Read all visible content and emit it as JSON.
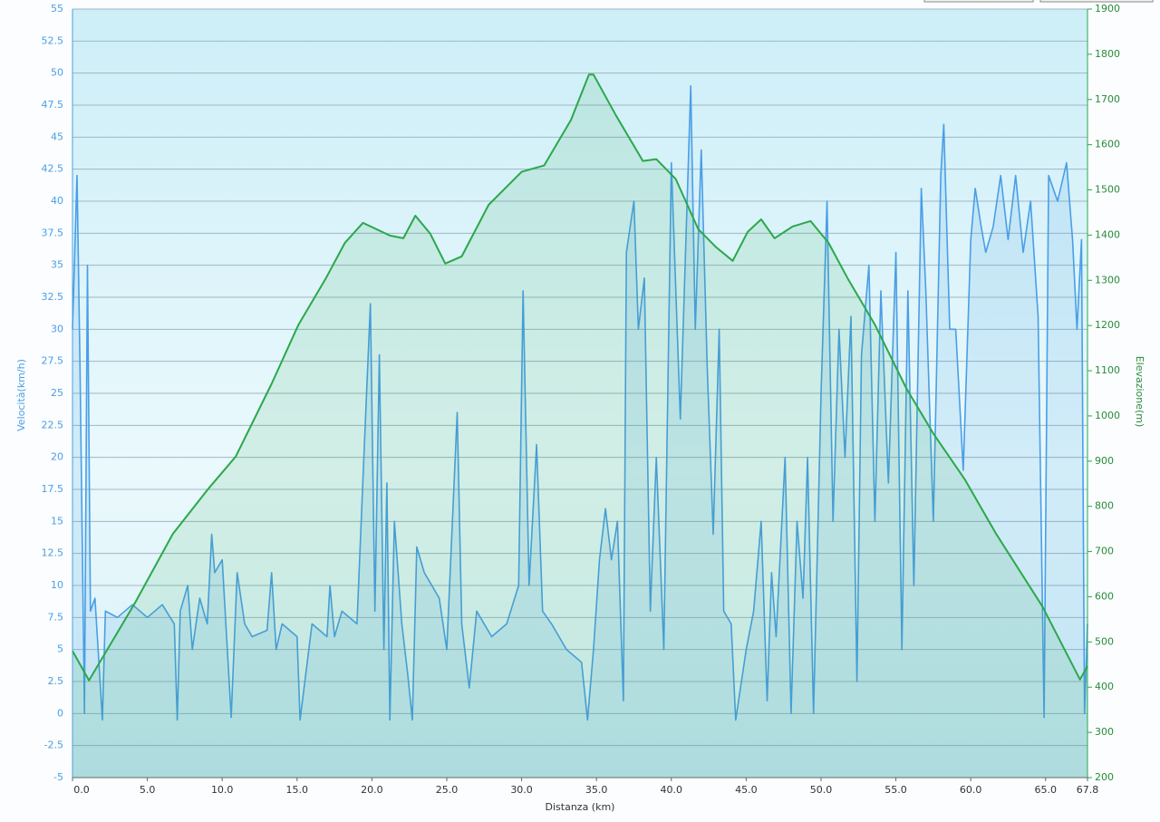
{
  "chart_data": {
    "type": "line",
    "xlabel": "Distanza  (km)",
    "ylabel": "Velocità(km/h)",
    "y2label": "Elevazione(m)",
    "xlim": [
      0,
      67.8
    ],
    "xticks": [
      {
        "value": 0,
        "label": "0.0"
      },
      {
        "value": 5,
        "label": "5.0"
      },
      {
        "value": 10,
        "label": "10.0"
      },
      {
        "value": 15,
        "label": "15.0"
      },
      {
        "value": 20,
        "label": "20.0"
      },
      {
        "value": 25,
        "label": "25.0"
      },
      {
        "value": 30,
        "label": "30.0"
      },
      {
        "value": 35,
        "label": "35.0"
      },
      {
        "value": 40,
        "label": "40.0"
      },
      {
        "value": 45,
        "label": "45.0"
      },
      {
        "value": 50,
        "label": "50.0"
      },
      {
        "value": 55,
        "label": "55.0"
      },
      {
        "value": 60,
        "label": "60.0"
      },
      {
        "value": 65,
        "label": "65.0"
      },
      67.8
    ],
    "ylim": [
      -5,
      55
    ],
    "yticks": [
      -5,
      -2.5,
      0,
      2.5,
      5,
      7.5,
      10,
      12.5,
      15,
      17.5,
      20,
      22.5,
      25,
      27.5,
      30,
      32.5,
      35,
      37.5,
      40,
      42.5,
      45,
      47.5,
      50,
      52.5,
      55
    ],
    "y2lim": [
      200,
      1900
    ],
    "y2ticks": [
      200,
      300,
      400,
      500,
      600,
      700,
      800,
      900,
      1000,
      1100,
      1200,
      1300,
      1400,
      1500,
      1600,
      1700,
      1800,
      1900
    ],
    "grid": true,
    "series": [
      {
        "name": "Velocità",
        "color": "#4a9ee6",
        "axis": "y",
        "x": [
          0,
          0.3,
          0.5,
          0.8,
          1.0,
          1.2,
          1.5,
          2.0,
          2.2,
          3,
          4,
          5,
          6,
          6.8,
          7,
          7.2,
          7.7,
          8,
          8.5,
          9,
          9.3,
          9.5,
          10,
          10.6,
          11,
          11.5,
          12,
          13,
          13.3,
          13.6,
          14,
          15,
          15.2,
          16,
          17,
          17.2,
          17.5,
          18,
          19,
          19.5,
          19.9,
          20.2,
          20.5,
          20.8,
          21,
          21.2,
          21.5,
          22,
          22.4,
          22.7,
          23,
          23.5,
          24,
          24.5,
          25,
          25.7,
          26,
          26.5,
          27,
          28,
          29,
          29.8,
          30.1,
          30.5,
          31,
          31.4,
          32,
          33,
          34,
          34.4,
          34.8,
          35.2,
          35.6,
          36,
          36.4,
          36.8,
          37,
          37.5,
          37.8,
          38.2,
          38.6,
          39,
          39.5,
          40,
          40.6,
          41.3,
          41.6,
          42,
          42.4,
          42.8,
          43.2,
          43.5,
          44,
          44.3,
          45,
          45.5,
          46,
          46.4,
          46.7,
          47,
          47.6,
          48,
          48.4,
          48.8,
          49.1,
          49.5,
          50,
          50.4,
          50.8,
          51.2,
          51.6,
          52,
          52.4,
          52.7,
          53.2,
          53.6,
          54,
          54.5,
          55,
          55.4,
          55.8,
          56.2,
          56.7,
          57,
          57.5,
          58,
          58.2,
          58.6,
          59,
          59.5,
          60,
          60.3,
          60.7,
          61,
          61.5,
          62,
          62.5,
          63,
          63.5,
          64,
          64.5,
          64.9,
          65.2,
          65.8,
          66.4,
          66.8,
          67.1,
          67.4,
          67.6,
          67.8
        ],
        "values": [
          30,
          42,
          27,
          0,
          35,
          8,
          9,
          -0.5,
          8,
          7.5,
          8.5,
          7.5,
          8.5,
          7,
          -0.5,
          8,
          10,
          5,
          9,
          7,
          14,
          11,
          12,
          -0.3,
          11,
          7,
          6,
          6.5,
          11,
          5,
          7,
          6,
          -0.5,
          7,
          6,
          10,
          6,
          8,
          7,
          21,
          32,
          8,
          28,
          5,
          18,
          -0.5,
          15,
          7,
          3,
          -0.5,
          13,
          11,
          10,
          9,
          5,
          23.5,
          7,
          2,
          8,
          6,
          7,
          10,
          33,
          10,
          21,
          8,
          7,
          5,
          4,
          -0.5,
          5,
          12,
          16,
          12,
          15,
          1,
          36,
          40,
          30,
          34,
          8,
          20,
          5,
          43,
          23,
          49,
          30,
          44,
          27,
          14,
          30,
          8,
          7,
          -0.5,
          5,
          8,
          15,
          1,
          11,
          6,
          20,
          0,
          15,
          9,
          20,
          0,
          25,
          40,
          15,
          30,
          20,
          31,
          2.5,
          28,
          35,
          15,
          33,
          18,
          36,
          5,
          33,
          10,
          41,
          33,
          15,
          42,
          46,
          30,
          30,
          19,
          37,
          41,
          38,
          36,
          38,
          42,
          37,
          42,
          36,
          40,
          31,
          -0.3,
          42,
          40,
          43,
          37,
          30,
          37,
          0,
          7
        ]
      },
      {
        "name": "Elevazione",
        "color": "#2aa84a",
        "axis": "y2",
        "x": [
          0,
          1.1,
          4.2,
          6.7,
          9.1,
          10.9,
          13.3,
          15.1,
          16.9,
          18.2,
          19.4,
          21.2,
          22.1,
          22.9,
          23.9,
          24.9,
          26.0,
          27.8,
          30.0,
          31.5,
          33.3,
          34.5,
          34.8,
          36.3,
          38.1,
          39.0,
          40.3,
          41.8,
          43.0,
          44.1,
          45.1,
          46.0,
          46.9,
          48.1,
          49.3,
          50.5,
          51.8,
          53.6,
          55.7,
          57.5,
          59.6,
          61.7,
          64.8,
          67.3,
          67.8
        ],
        "values": [
          480,
          415,
          588,
          739,
          840,
          910,
          1071,
          1202,
          1303,
          1383,
          1427,
          1399,
          1393,
          1443,
          1403,
          1337,
          1353,
          1467,
          1540,
          1554,
          1655,
          1755,
          1755,
          1665,
          1564,
          1568,
          1524,
          1413,
          1373,
          1343,
          1407,
          1435,
          1393,
          1419,
          1431,
          1383,
          1303,
          1202,
          1061,
          961,
          860,
          739,
          578,
          417,
          447
        ]
      }
    ]
  }
}
